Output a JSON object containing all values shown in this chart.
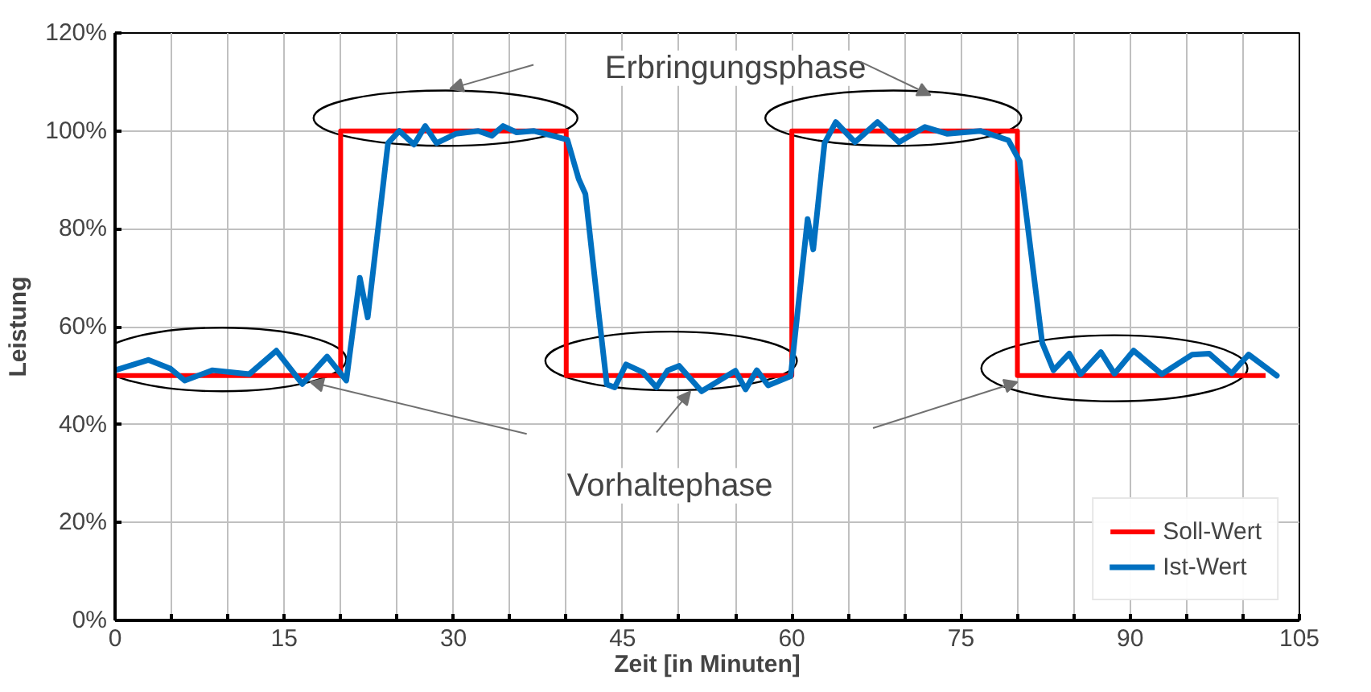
{
  "chart_data": {
    "type": "line",
    "xlabel": "Zeit [in Minuten]",
    "ylabel": "Leistung",
    "xlim": [
      0,
      105
    ],
    "xticks": [
      0,
      {
        "value": 5,
        "label": null
      },
      {
        "value": 10,
        "label": null
      },
      15,
      {
        "value": 20,
        "label": null
      },
      {
        "value": 25,
        "label": null
      },
      30,
      {
        "value": 35,
        "label": null
      },
      {
        "value": 40,
        "label": null
      },
      45,
      {
        "value": 50,
        "label": null
      },
      {
        "value": 55,
        "label": null
      },
      60,
      {
        "value": 65,
        "label": null
      },
      {
        "value": 70,
        "label": null
      },
      75,
      {
        "value": 80,
        "label": null
      },
      {
        "value": 85,
        "label": null
      },
      90,
      {
        "value": 95,
        "label": null
      },
      {
        "value": 100,
        "label": null
      },
      105
    ],
    "ylim": [
      0,
      120
    ],
    "yticks": [
      {
        "value": 0,
        "label": "0%"
      },
      {
        "value": 20,
        "label": "20%"
      },
      {
        "value": 40,
        "label": "40%"
      },
      {
        "value": 60,
        "label": "60%"
      },
      {
        "value": 80,
        "label": "80%"
      },
      {
        "value": 100,
        "label": "100%"
      },
      {
        "value": 120,
        "label": "120%"
      }
    ],
    "grid": true,
    "legend": "bottom right",
    "annotations": [
      "Erbringungsphase",
      {
        "text": "Vorhaltephase",
        "x": 51.0,
        "y": 46.8
      }
    ],
    "series": [
      {
        "name": "Soll-Wert",
        "type": "step",
        "color": "#ff0000",
        "x": [
          0,
          20,
          40,
          60,
          80,
          102
        ],
        "values": [
          50,
          100,
          50,
          100,
          50,
          50
        ]
      },
      {
        "name": "Ist-Wert",
        "color": "#0070c0",
        "x": [
          0,
          2.95,
          4.93,
          6.17,
          8.64,
          11.9,
          14.3,
          16.6,
          18.8,
          20.5,
          21.7,
          22.4,
          24.2,
          25.2,
          26.5,
          27.5,
          28.5,
          30.2,
          32.2,
          33.4,
          34.4,
          35.6,
          37.1,
          39.1,
          40.1,
          41.1,
          41.7,
          42.8,
          43.6,
          44.3,
          45.3,
          46.8,
          48.0,
          49.0,
          50.0,
          52.0,
          55.0,
          55.9,
          56.9,
          57.9,
          59.9,
          61.4,
          61.9,
          62.9,
          63.9,
          65.6,
          67.6,
          69.5,
          71.8,
          73.8,
          76.7,
          79.2,
          80.2,
          82.2,
          83.2,
          84.6,
          85.6,
          87.4,
          88.6,
          90.3,
          92.8,
          95.5,
          97.0,
          99.0,
          100.5,
          103
        ],
        "values": [
          51.1,
          53.2,
          51.4,
          49.0,
          51.1,
          50.3,
          55.1,
          48.3,
          53.9,
          49.0,
          70.0,
          61.9,
          97.5,
          100,
          97.2,
          101,
          97.5,
          99.4,
          100,
          99,
          101,
          99.7,
          100,
          98.8,
          98.2,
          90.2,
          87.1,
          64.3,
          48.2,
          47.6,
          52.3,
          50.7,
          47.6,
          51.1,
          52.0,
          46.8,
          51.0,
          47.2,
          51.1,
          48.0,
          49.9,
          82.0,
          75.8,
          97.5,
          101.8,
          97.7,
          101.8,
          97.7,
          100.8,
          99.4,
          100,
          98.1,
          93.8,
          56.7,
          51.1,
          54.5,
          50.3,
          54.8,
          50.4,
          55.1,
          50.3,
          54.3,
          54.5,
          50.5,
          54.3,
          50
        ]
      }
    ]
  }
}
